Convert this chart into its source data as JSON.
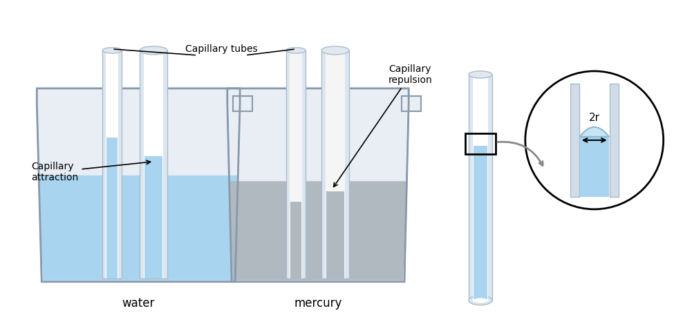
{
  "background_color": "#ffffff",
  "water_label": "water",
  "mercury_label": "mercury",
  "capillary_tubes_label": "Capillary tubes",
  "capillary_attraction_label": "Capillary\nattraction",
  "capillary_repulsion_label": "Capillary\nrepulsion",
  "two_r_label": "2r",
  "beaker1_color": "#d0dce8",
  "beaker2_color": "#c8cdd2",
  "water_color": "#a8d4f0",
  "water_dark": "#7bbde0",
  "mercury_color": "#b0b8c0",
  "tube_outer_color": "#dce6ee",
  "tube_inner_color": "#ffffff",
  "tube_water_color": "#a8d4f0",
  "label_color": "#000000",
  "font_size_label": 11,
  "font_size_small": 9
}
